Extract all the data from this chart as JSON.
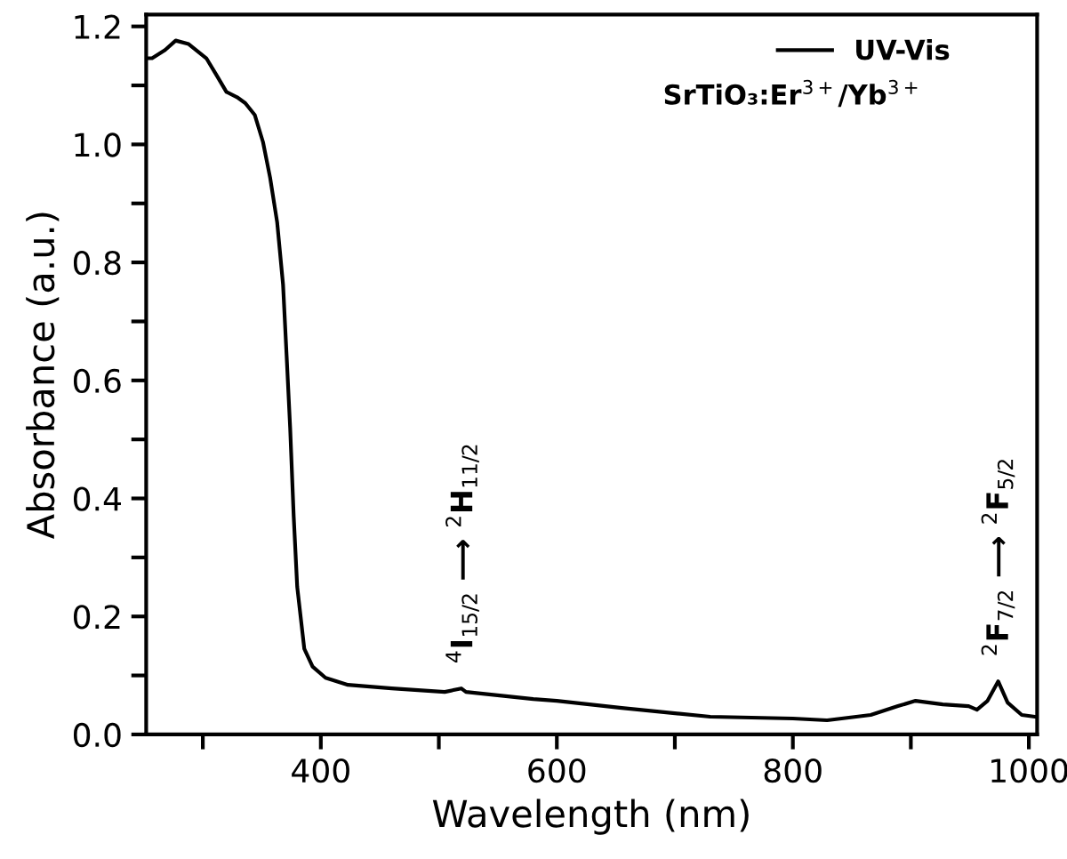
{
  "chart_data": {
    "type": "line",
    "xlabel": "Wavelength (nm)",
    "ylabel": "Absorbance (a.u.)",
    "xlim": [
      252,
      1007
    ],
    "ylim": [
      0,
      1.22
    ],
    "xticks": [
      {
        "value": 300,
        "label": null
      },
      400,
      {
        "value": 500,
        "label": null
      },
      600,
      {
        "value": 700,
        "label": null
      },
      800,
      {
        "value": 900,
        "label": null
      },
      1000
    ],
    "yticks": [
      {
        "value": 0,
        "label": "0.0"
      },
      {
        "value": 0.1,
        "label": null
      },
      {
        "value": 0.2,
        "label": "0.2"
      },
      {
        "value": 0.3,
        "label": null
      },
      {
        "value": 0.4,
        "label": "0.4"
      },
      {
        "value": 0.5,
        "label": null
      },
      {
        "value": 0.6,
        "label": "0.6"
      },
      {
        "value": 0.7,
        "label": null
      },
      {
        "value": 0.8,
        "label": "0.8"
      },
      {
        "value": 0.9,
        "label": null
      },
      {
        "value": 1.0,
        "label": "1.0"
      },
      {
        "value": 1.1,
        "label": null
      },
      {
        "value": 1.2,
        "label": "1.2"
      }
    ],
    "x": [
      253,
      257,
      268,
      277,
      288,
      303,
      312,
      320,
      329,
      336,
      344,
      351,
      357,
      363,
      368,
      371,
      374,
      377,
      380,
      386,
      393,
      404,
      423,
      460,
      505,
      519,
      523,
      580,
      600,
      655,
      730,
      800,
      829,
      866,
      889,
      904,
      927,
      949,
      956,
      965,
      974,
      982,
      994,
      1005
    ],
    "series": [
      {
        "name": "UV-Vis",
        "color": "#000000",
        "values": [
          1.146,
          1.146,
          1.16,
          1.176,
          1.17,
          1.146,
          1.116,
          1.089,
          1.08,
          1.07,
          1.05,
          1.004,
          0.944,
          0.868,
          0.762,
          0.642,
          0.52,
          0.37,
          0.25,
          0.145,
          0.115,
          0.096,
          0.084,
          0.078,
          0.072,
          0.078,
          0.072,
          0.06,
          0.057,
          0.045,
          0.03,
          0.027,
          0.024,
          0.033,
          0.048,
          0.057,
          0.051,
          0.048,
          0.042,
          0.057,
          0.09,
          0.054,
          0.033,
          0.03
        ]
      }
    ],
    "legend": "top right",
    "grid": false,
    "marker": "none",
    "line_style": "solid",
    "annotations": [
      "SrTiO₃:Er$^{3+}$/Yb$^{3+}$",
      {
        "text": "$^{4}$I$_{15/2}$ ⟶ $^{2}$H$_{11/2}$",
        "x": 520,
        "y": 0.078
      },
      {
        "text": "$^{2}$F$_{7/2}$ ⟶ $^{2}$F$_{5/2}$",
        "x": 974,
        "y": 0.09
      }
    ]
  }
}
